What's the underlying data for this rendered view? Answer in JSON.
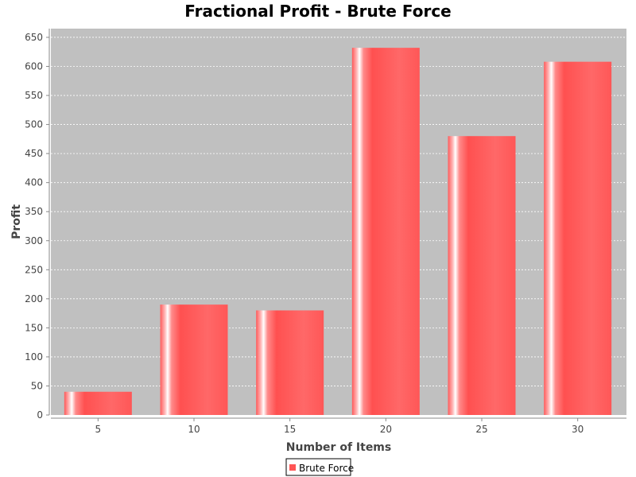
{
  "chart_data": {
    "type": "bar",
    "title": "Fractional Profit - Brute Force",
    "xlabel": "Number of Items",
    "ylabel": "Profit",
    "categories": [
      "5",
      "10",
      "15",
      "20",
      "25",
      "30"
    ],
    "series": [
      {
        "name": "Brute Force",
        "values": [
          40,
          190,
          180,
          632,
          480,
          608
        ],
        "color": "#ff5555"
      }
    ],
    "ylim": [
      0,
      665
    ],
    "yticks": [
      0,
      50,
      100,
      150,
      200,
      250,
      300,
      350,
      400,
      450,
      500,
      550,
      600,
      650
    ],
    "grid": true,
    "legend": "bottom-center",
    "plot_background": "#c0c0c0"
  }
}
